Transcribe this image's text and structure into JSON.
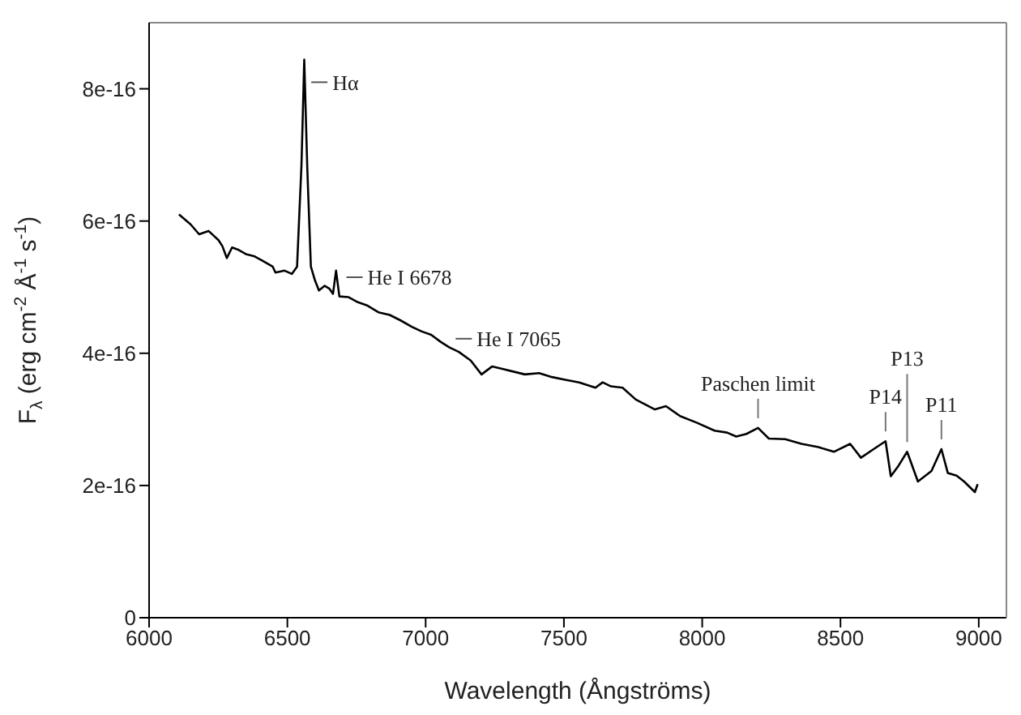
{
  "chart_data": {
    "type": "line",
    "xlabel": "Wavelength (Ångströms)",
    "ylabel": "F$_{λ}$ (erg cm$^{-2}$ Å$^{-1}$ s$^{-1}$)",
    "x": [
      6108,
      6150,
      6181,
      6215,
      6251,
      6265,
      6281,
      6300,
      6320,
      6350,
      6379,
      6410,
      6447,
      6457,
      6490,
      6516,
      6535,
      6551,
      6561,
      6572,
      6585,
      6600,
      6614,
      6635,
      6651,
      6665,
      6676,
      6688,
      6720,
      6751,
      6790,
      6829,
      6870,
      6908,
      6950,
      6986,
      7020,
      7055,
      7085,
      7120,
      7163,
      7202,
      7240,
      7280,
      7320,
      7359,
      7410,
      7457,
      7505,
      7555,
      7614,
      7640,
      7670,
      7712,
      7760,
      7829,
      7869,
      7920,
      7980,
      8045,
      8090,
      8123,
      8160,
      8202,
      8241,
      8300,
      8359,
      8420,
      8476,
      8535,
      8574,
      8620,
      8663,
      8682,
      8710,
      8741,
      8780,
      8829,
      8865,
      8888,
      8920,
      8947,
      8986,
      8996
    ],
    "series": [
      {
        "color": "#000000",
        "values": [
          6.1e-16,
          5.95e-16,
          5.8e-16,
          5.85e-16,
          5.71e-16,
          5.62e-16,
          5.44e-16,
          5.6e-16,
          5.57e-16,
          5.5e-16,
          5.47e-16,
          5.4e-16,
          5.31e-16,
          5.22e-16,
          5.25e-16,
          5.2e-16,
          5.31e-16,
          6.85e-16,
          8.44e-16,
          6.8e-16,
          5.31e-16,
          5.1e-16,
          4.95e-16,
          5.02e-16,
          4.98e-16,
          4.9e-16,
          5.25e-16,
          4.86e-16,
          4.85e-16,
          4.78e-16,
          4.72e-16,
          4.62e-16,
          4.58e-16,
          4.5e-16,
          4.4e-16,
          4.33e-16,
          4.28e-16,
          4.17e-16,
          4.09e-16,
          4.02e-16,
          3.89e-16,
          3.68e-16,
          3.8e-16,
          3.76e-16,
          3.72e-16,
          3.68e-16,
          3.7e-16,
          3.64e-16,
          3.6e-16,
          3.56e-16,
          3.48e-16,
          3.56e-16,
          3.5e-16,
          3.48e-16,
          3.3e-16,
          3.15e-16,
          3.2e-16,
          3.05e-16,
          2.95e-16,
          2.83e-16,
          2.8e-16,
          2.74e-16,
          2.78e-16,
          2.87e-16,
          2.71e-16,
          2.7e-16,
          2.63e-16,
          2.58e-16,
          2.51e-16,
          2.63e-16,
          2.42e-16,
          2.55e-16,
          2.67e-16,
          2.14e-16,
          2.3e-16,
          2.51e-16,
          2.06e-16,
          2.22e-16,
          2.55e-16,
          2.19e-16,
          2.15e-16,
          2.06e-16,
          1.9e-16,
          2.02e-16
        ]
      }
    ],
    "xlim": [
      6000,
      9100
    ],
    "xticks": [
      6000,
      6500,
      7000,
      7500,
      8000,
      8500,
      9000
    ],
    "ylim": [
      0,
      9e-16
    ],
    "yticks": [
      0,
      {
        "value": 2e-16,
        "label": "2e-16"
      },
      {
        "value": 4e-16,
        "label": "4e-16"
      },
      {
        "value": 6e-16,
        "label": "6e-16"
      },
      {
        "value": 8e-16,
        "label": "8e-16"
      }
    ],
    "grid": false,
    "legend": false,
    "marker": "none",
    "line_style": "solid",
    "annotations": [
      {
        "text": "Hα",
        "x": 6563,
        "y": 8.1e-16
      },
      {
        "text": "He I 6678",
        "x": 6690,
        "y": 5.15e-16
      },
      {
        "text": "He I 7065",
        "x": 7085,
        "y": 4.22e-16
      },
      {
        "text": "Paschen limit",
        "x": 8202,
        "y": 2.87e-16
      },
      {
        "text": "P14",
        "x": 8663,
        "y": 2.67e-16
      },
      {
        "text": "P13",
        "x": 8741,
        "y": 2.51e-16
      },
      {
        "text": "P11",
        "x": 8865,
        "y": 2.55e-16
      }
    ]
  }
}
